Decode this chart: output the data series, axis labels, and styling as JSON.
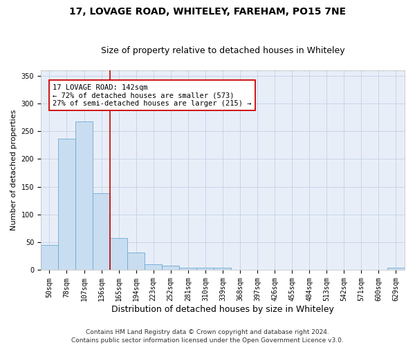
{
  "title1": "17, LOVAGE ROAD, WHITELEY, FAREHAM, PO15 7NE",
  "title2": "Size of property relative to detached houses in Whiteley",
  "xlabel": "Distribution of detached houses by size in Whiteley",
  "ylabel": "Number of detached properties",
  "categories": [
    "50sqm",
    "78sqm",
    "107sqm",
    "136sqm",
    "165sqm",
    "194sqm",
    "223sqm",
    "252sqm",
    "281sqm",
    "310sqm",
    "339sqm",
    "368sqm",
    "397sqm",
    "426sqm",
    "455sqm",
    "484sqm",
    "513sqm",
    "542sqm",
    "571sqm",
    "600sqm",
    "629sqm"
  ],
  "values": [
    45,
    236,
    268,
    139,
    58,
    32,
    10,
    8,
    4,
    4,
    4,
    0,
    0,
    0,
    0,
    0,
    0,
    0,
    0,
    0,
    4
  ],
  "bar_color": "#c9ddf0",
  "bar_edge_color": "#6aaad4",
  "vline_color": "#cc0000",
  "vline_x_index": 3,
  "annotation_line1": "17 LOVAGE ROAD: 142sqm",
  "annotation_line2": "← 72% of detached houses are smaller (573)",
  "annotation_line3": "27% of semi-detached houses are larger (215) →",
  "annotation_box_color": "#ffffff",
  "annotation_box_edge": "#cc0000",
  "ylim": [
    0,
    360
  ],
  "yticks": [
    0,
    50,
    100,
    150,
    200,
    250,
    300,
    350
  ],
  "footer": "Contains HM Land Registry data © Crown copyright and database right 2024.\nContains public sector information licensed under the Open Government Licence v3.0.",
  "bg_color": "#ffffff",
  "plot_bg_color": "#e8eef8",
  "grid_color": "#c8d4e8",
  "title1_fontsize": 10,
  "title2_fontsize": 9,
  "xlabel_fontsize": 9,
  "ylabel_fontsize": 8,
  "tick_fontsize": 7,
  "annotation_fontsize": 7.5,
  "footer_fontsize": 6.5
}
